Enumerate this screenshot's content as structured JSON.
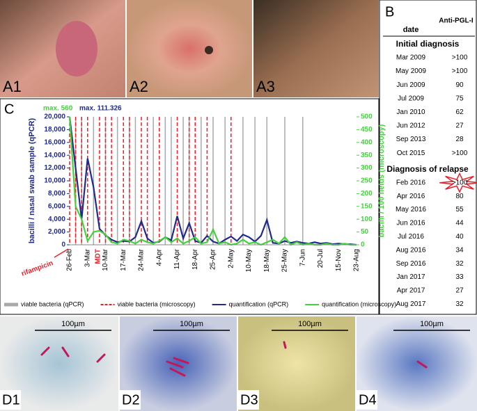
{
  "panels": {
    "a1": "A1",
    "a2": "A2",
    "a3": "A3",
    "c": "C",
    "d1": "D1",
    "d2": "D2",
    "d3": "D3",
    "d4": "D4",
    "scale": "100µm"
  },
  "table": {
    "label": "B",
    "header": [
      "date",
      "Anti-PGL-I"
    ],
    "sections": [
      {
        "title": "Initial diagnosis",
        "rows": [
          [
            "Mar 2009",
            ">100"
          ],
          [
            "May 2009",
            ">100"
          ],
          [
            "Jun 2009",
            "90"
          ],
          [
            "Jul 2009",
            "75"
          ],
          [
            "Jan 2010",
            "62"
          ],
          [
            "Jun 2012",
            "27"
          ],
          [
            "Sep 2013",
            "28"
          ],
          [
            "Oct 2015",
            ">100"
          ]
        ]
      },
      {
        "title": "Diagnosis of relapse",
        "rows": [
          [
            "Feb 2016",
            ">100"
          ],
          [
            "Apr 2016",
            "80"
          ],
          [
            "May 2016",
            "55"
          ],
          [
            "Jun 2016",
            "44"
          ],
          [
            "Jul 2016",
            "40"
          ],
          [
            "Aug 2016",
            "34"
          ],
          [
            "Sep 2016",
            "32"
          ],
          [
            "Jan 2017",
            "33"
          ],
          [
            "Apr 2017",
            "27"
          ],
          [
            "Aug 2017",
            "32"
          ]
        ]
      }
    ]
  },
  "chart_data": {
    "type": "line",
    "ylabel": "bacilli / nasal swab sample (qPCR)",
    "y2label": "bacilli / 100 fields (microscopy)",
    "annotations": [
      "max. 560",
      "max. 111.326",
      "rifampicin",
      "MDT"
    ],
    "categories": [
      "26-Feb",
      null,
      null,
      "3-Mar",
      null,
      null,
      "10-Mar",
      null,
      null,
      "17-Mar",
      null,
      null,
      "24-Mar",
      null,
      null,
      "4-Apr",
      null,
      null,
      "11-Apr",
      null,
      null,
      "18-Apr",
      null,
      null,
      "25-Apr",
      null,
      null,
      "2-May",
      null,
      null,
      "10-May",
      null,
      null,
      "18-May",
      null,
      null,
      "25-May",
      null,
      null,
      "7-Jun",
      null,
      null,
      "20-Jul",
      null,
      null,
      "15-Nov",
      null,
      null,
      "23-Aug"
    ],
    "ylim": [
      0,
      20000
    ],
    "yticks": [
      0,
      {
        "value": 2000,
        "label": "2,000"
      },
      {
        "value": 4000,
        "label": "4,000"
      },
      {
        "value": 6000,
        "label": "6,000"
      },
      {
        "value": 8000,
        "label": "8,000"
      },
      {
        "value": 10000,
        "label": "10,000"
      },
      {
        "value": 12000,
        "label": "12,000"
      },
      {
        "value": 14000,
        "label": "14,000"
      },
      {
        "value": 16000,
        "label": "16,000"
      },
      {
        "value": 18000,
        "label": "18,000"
      },
      {
        "value": 20000,
        "label": "20,000"
      }
    ],
    "y2lim": [
      0,
      500
    ],
    "y2ticks": [
      0,
      50,
      100,
      150,
      200,
      250,
      300,
      350,
      400,
      450,
      500
    ],
    "series": [
      {
        "name": "viable bacteria (qPCR)",
        "color": "#a9a9a9",
        "style": "vline",
        "values": [
          null,
          20000,
          20000,
          null,
          20000,
          null,
          20000,
          null,
          20000,
          null,
          20000,
          20000,
          null,
          null,
          20000,
          null,
          20000,
          20000,
          null,
          20000,
          20000,
          null,
          20000,
          null,
          20000,
          null,
          20000,
          null,
          null,
          20000,
          null,
          20000,
          null,
          20000,
          null,
          null,
          20000,
          null,
          null,
          20000,
          null,
          null,
          null,
          null,
          null,
          null,
          null,
          null,
          null
        ]
      },
      {
        "name": "viable bacteria (microscopy)",
        "color": "#e8202a",
        "style": "vline-dashed",
        "values": [
          20000,
          20000,
          20000,
          20000,
          null,
          20000,
          20000,
          20000,
          null,
          20000,
          20000,
          null,
          20000,
          20000,
          null,
          20000,
          null,
          null,
          20000,
          null,
          20000,
          20000,
          null,
          20000,
          null,
          null,
          null,
          20000,
          null,
          null,
          null,
          null,
          null,
          null,
          null,
          null,
          null,
          null,
          null,
          null,
          null,
          null,
          null,
          null,
          null,
          null,
          null,
          null,
          null
        ]
      },
      {
        "name": "quantification (qPCR)",
        "color": "#1f2a8c",
        "style": "line",
        "values": [
          20000,
          12000,
          4000,
          13500,
          9000,
          2500,
          1500,
          800,
          400,
          600,
          500,
          1200,
          3700,
          1000,
          300,
          500,
          1200,
          700,
          4500,
          1000,
          3400,
          600,
          300,
          1400,
          500,
          200,
          800,
          1300,
          600,
          1600,
          1200,
          500,
          1400,
          3900,
          300,
          200,
          600,
          300,
          500,
          300,
          200,
          400,
          200,
          300,
          100,
          200,
          100,
          100,
          0
        ]
      },
      {
        "name": "quantification (microscopy)",
        "color": "#44d13c",
        "style": "line",
        "axis": "y2",
        "values": [
          500,
          150,
          100,
          15,
          50,
          55,
          40,
          10,
          5,
          20,
          15,
          5,
          20,
          10,
          5,
          15,
          30,
          10,
          25,
          5,
          15,
          30,
          5,
          10,
          60,
          5,
          10,
          0,
          5,
          20,
          5,
          10,
          0,
          10,
          20,
          5,
          30,
          0,
          10,
          0,
          5,
          0,
          0,
          5,
          0,
          0,
          5,
          0,
          0
        ]
      }
    ]
  }
}
